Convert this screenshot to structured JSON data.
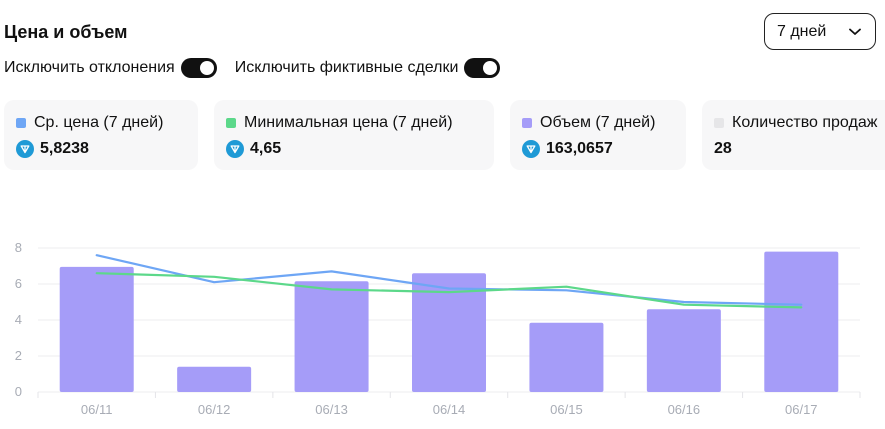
{
  "header": {
    "title": "Цена и объем",
    "period": "7 дней"
  },
  "toggles": [
    {
      "label": "Исключить отклонения",
      "on": true
    },
    {
      "label": "Исключить фиктивные сделки",
      "on": true
    }
  ],
  "stats": [
    {
      "label": "Ср. цена (7 дней)",
      "value": "5,8238",
      "color": "#6ea6f5",
      "icon": "ton-icon"
    },
    {
      "label": "Минимальная цена (7 дней)",
      "value": "4,65",
      "color": "#5cd88a",
      "icon": "ton-icon"
    },
    {
      "label": "Объем (7 дней)",
      "value": "163,0657",
      "color": "#a59cf8",
      "icon": "ton-icon"
    },
    {
      "label": "Количество продаж",
      "value": "28",
      "color": "#e6e6e8",
      "icon": ""
    }
  ],
  "chart_data": {
    "type": "bar",
    "categories": [
      "06/11",
      "06/12",
      "06/13",
      "06/14",
      "06/15",
      "06/16",
      "06/17"
    ],
    "ylim": [
      0,
      8
    ],
    "yticks": [
      0,
      2,
      4,
      6,
      8
    ],
    "grid": true,
    "series": [
      {
        "kind": "bar",
        "color": "#a59cf8",
        "values": [
          6.95,
          1.4,
          6.15,
          6.6,
          3.85,
          4.6,
          7.8
        ]
      },
      {
        "kind": "line",
        "color": "#6ea6f5",
        "values": [
          7.6,
          6.1,
          6.7,
          5.75,
          5.65,
          5.0,
          4.85
        ]
      },
      {
        "kind": "line",
        "color": "#5cd88a",
        "values": [
          6.6,
          6.4,
          5.7,
          5.55,
          5.85,
          4.85,
          4.7
        ]
      }
    ]
  }
}
